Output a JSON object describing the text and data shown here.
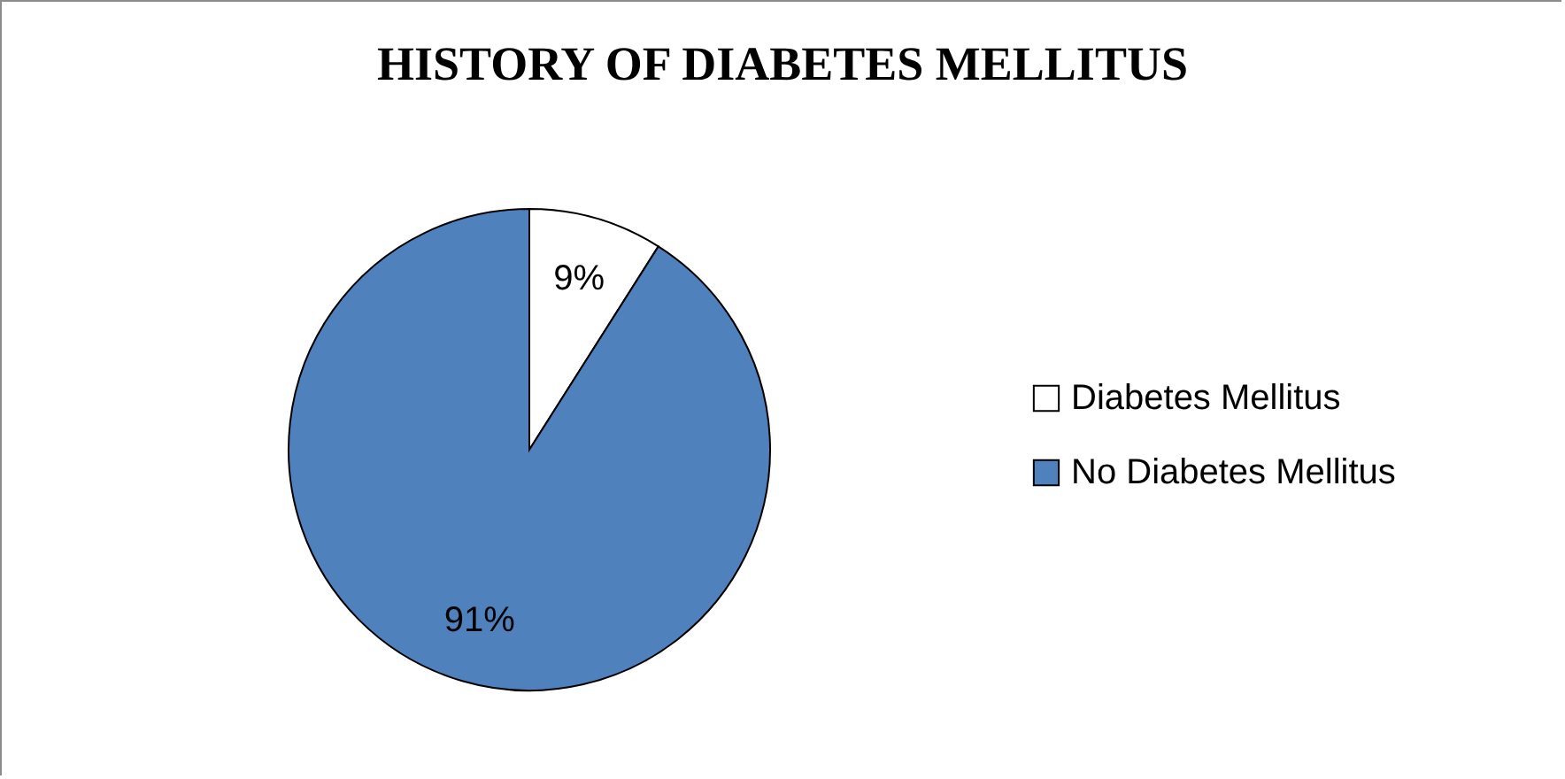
{
  "chart_data": {
    "type": "pie",
    "title": "HISTORY OF DIABETES MELLITUS",
    "categories": [
      "Diabetes Mellitus",
      "No Diabetes Mellitus"
    ],
    "values": [
      9,
      91
    ],
    "colors": [
      "#ffffff",
      "#4f81bd"
    ],
    "value_labels": [
      "9%",
      "91%"
    ],
    "legend": "right"
  }
}
